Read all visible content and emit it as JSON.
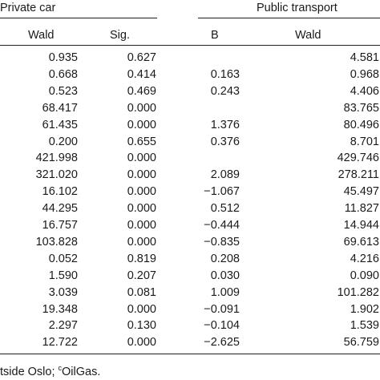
{
  "header": {
    "group_private": "Private car",
    "group_public": "Public transport",
    "columns": [
      "Wald",
      "Sig.",
      "B",
      "Wald"
    ]
  },
  "rows": [
    {
      "wald_private": "0.935",
      "sig_private": "0.627",
      "b_public": "",
      "wald_public": "4.581"
    },
    {
      "wald_private": "0.668",
      "sig_private": "0.414",
      "b_public": "0.163",
      "wald_public": "0.968"
    },
    {
      "wald_private": "0.523",
      "sig_private": "0.469",
      "b_public": "0.243",
      "wald_public": "4.406"
    },
    {
      "wald_private": "68.417",
      "sig_private": "0.000",
      "b_public": "",
      "wald_public": "83.765"
    },
    {
      "wald_private": "61.435",
      "sig_private": "0.000",
      "b_public": "1.376",
      "wald_public": "80.496"
    },
    {
      "wald_private": "0.200",
      "sig_private": "0.655",
      "b_public": "0.376",
      "wald_public": "8.701"
    },
    {
      "wald_private": "421.998",
      "sig_private": "0.000",
      "b_public": "",
      "wald_public": "429.746"
    },
    {
      "wald_private": "321.020",
      "sig_private": "0.000",
      "b_public": "2.089",
      "wald_public": "278.211"
    },
    {
      "wald_private": "16.102",
      "sig_private": "0.000",
      "b_public": "−1.067",
      "wald_public": "45.497"
    },
    {
      "wald_private": "44.295",
      "sig_private": "0.000",
      "b_public": "0.512",
      "wald_public": "11.827"
    },
    {
      "wald_private": "16.757",
      "sig_private": "0.000",
      "b_public": "−0.444",
      "wald_public": "14.944"
    },
    {
      "wald_private": "103.828",
      "sig_private": "0.000",
      "b_public": "−0.835",
      "wald_public": "69.613"
    },
    {
      "wald_private": "0.052",
      "sig_private": "0.819",
      "b_public": "0.208",
      "wald_public": "4.216"
    },
    {
      "wald_private": "1.590",
      "sig_private": "0.207",
      "b_public": "0.030",
      "wald_public": "0.090"
    },
    {
      "wald_private": "3.039",
      "sig_private": "0.081",
      "b_public": "1.009",
      "wald_public": "101.282"
    },
    {
      "wald_private": "19.348",
      "sig_private": "0.000",
      "b_public": "−0.091",
      "wald_public": "1.902"
    },
    {
      "wald_private": "2.297",
      "sig_private": "0.130",
      "b_public": "−0.104",
      "wald_public": "1.539"
    },
    {
      "wald_private": "12.722",
      "sig_private": "0.000",
      "b_public": "−2.625",
      "wald_public": "56.759"
    }
  ],
  "footer": {
    "text_before": "tside Oslo; ",
    "superscript": "c",
    "text_after": "OilGas."
  }
}
